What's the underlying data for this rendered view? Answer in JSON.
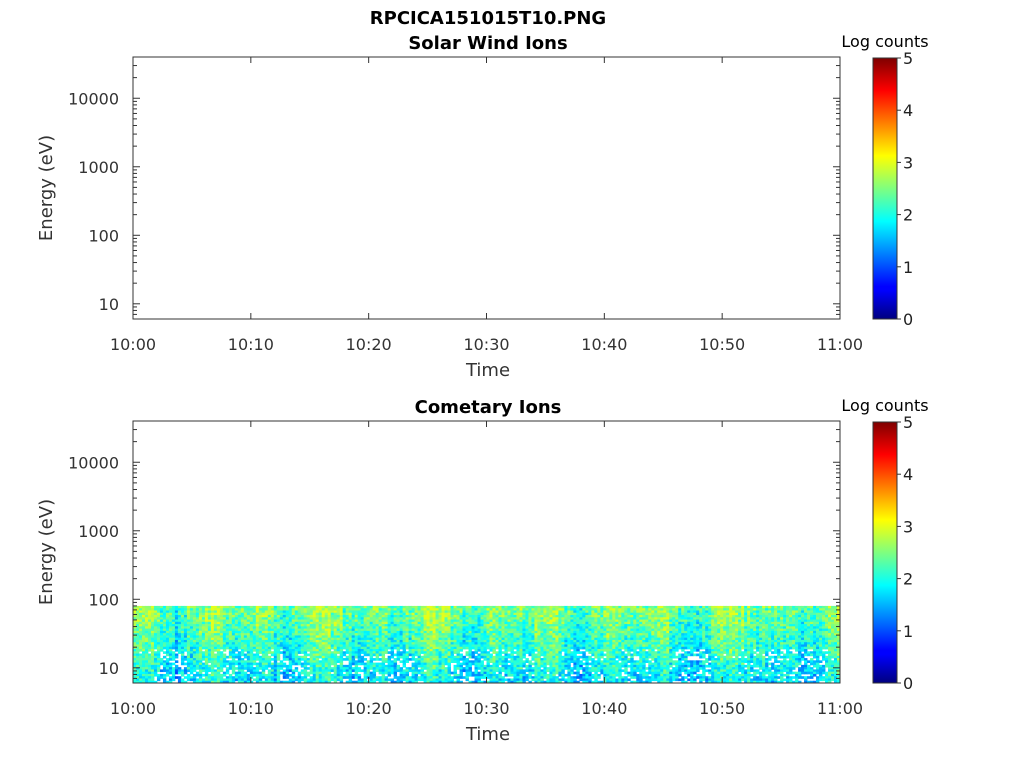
{
  "figure": {
    "title": "RPCICA151015T10.PNG"
  },
  "chart_data": [
    {
      "type": "heatmap",
      "title": "Solar Wind Ions",
      "xlabel": "Time",
      "ylabel": "Energy (eV)",
      "x_ticks": [
        "10:00",
        "10:10",
        "10:20",
        "10:30",
        "10:40",
        "10:50",
        "11:00"
      ],
      "x_range": [
        "10:00",
        "11:00"
      ],
      "y_scale": "log",
      "y_ticks": [
        10,
        100,
        1000,
        10000
      ],
      "y_tick_labels": [
        "10",
        "100",
        "1000",
        "10000"
      ],
      "y_range": [
        6,
        40000
      ],
      "colorbar": {
        "label": "Log counts",
        "range": [
          0,
          5
        ],
        "ticks": [
          0,
          1,
          2,
          3,
          4,
          5
        ],
        "colormap": "jet"
      },
      "data_description": "",
      "max_energy_with_counts": null,
      "time_minutes": [],
      "intensity": []
    },
    {
      "type": "heatmap",
      "title": "Cometary Ions",
      "xlabel": "Time",
      "ylabel": "Energy (eV)",
      "x_ticks": [
        "10:00",
        "10:10",
        "10:20",
        "10:30",
        "10:40",
        "10:50",
        "11:00"
      ],
      "x_range": [
        "10:00",
        "11:00"
      ],
      "y_scale": "log",
      "y_ticks": [
        10,
        100,
        1000,
        10000
      ],
      "y_tick_labels": [
        "10",
        "100",
        "1000",
        "10000"
      ],
      "y_range": [
        6,
        40000
      ],
      "colorbar": {
        "label": "Log counts",
        "range": [
          0,
          5
        ],
        "ticks": [
          0,
          1,
          2,
          3,
          4,
          5
        ],
        "colormap": "jet"
      },
      "max_energy_with_counts": 80,
      "min_energy_with_counts": 6,
      "typical_log_counts_range": [
        0,
        3
      ]
    }
  ]
}
